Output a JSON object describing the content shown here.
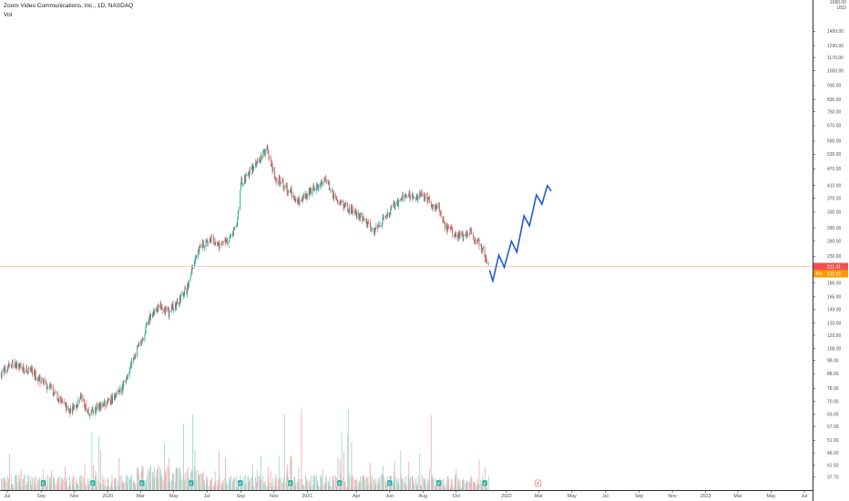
{
  "header": {
    "title": "Zoom Video Communications, Inc., 1D, NASDAQ",
    "volume_label": "Vol"
  },
  "price_axis": {
    "currency_top": "1690.00",
    "currency_unit": "USD",
    "ticks": [
      "1450.00",
      "1290.00",
      "1170.00",
      "1050.00",
      "930.00",
      "830.00",
      "750.00",
      "670.00",
      "590.00",
      "530.00",
      "470.00",
      "410.00",
      "370.00",
      "330.00",
      "290.00",
      "260.00",
      "230.00",
      "185.00",
      "165.00",
      "149.00",
      "133.00",
      "120.50",
      "108.00",
      "98.00",
      "88.00",
      "78.00",
      "70.00",
      "63.00",
      "57.00",
      "51.00",
      "46.00",
      "41.50",
      "37.70"
    ]
  },
  "time_axis": {
    "labels": [
      "Jul",
      "Sep",
      "Nov",
      "2020",
      "Mar",
      "May",
      "Jul",
      "Sep",
      "Nov",
      "2021",
      "Apr",
      "Jun",
      "Aug",
      "Oct",
      "2022",
      "Mar",
      "May",
      "Jul",
      "Sep",
      "Nov",
      "2023",
      "Mar",
      "May",
      "Jul"
    ]
  },
  "price_tags": {
    "last_price": "211.41",
    "pre_label": "Pre",
    "pre_price": "210.91"
  },
  "earnings_marker": "E",
  "colors": {
    "up": "#26a69a",
    "down": "#ef5350",
    "up_vol": "#9fd6cf",
    "down_vol": "#f5b0ad",
    "projection": "#1e5ccf",
    "last_price": "#ef5350",
    "pre_market": "#ff9800",
    "price_line": "#fbc8a8"
  },
  "chart_data": {
    "type": "candlestick",
    "title": "Zoom Video Communications, Inc., 1D, NASDAQ",
    "y_scale": "log",
    "ylim": [
      36,
      1700
    ],
    "grid": false,
    "volume_pane": true,
    "price_path": [
      [
        "2019-06-20",
        88
      ],
      [
        "2019-07-05",
        96
      ],
      [
        "2019-07-25",
        92
      ],
      [
        "2019-08-15",
        90
      ],
      [
        "2019-08-30",
        83
      ],
      [
        "2019-09-20",
        78
      ],
      [
        "2019-10-10",
        69
      ],
      [
        "2019-10-25",
        65
      ],
      [
        "2019-11-15",
        72
      ],
      [
        "2019-11-28",
        63
      ],
      [
        "2019-12-15",
        67
      ],
      [
        "2020-01-05",
        70
      ],
      [
        "2020-01-25",
        76
      ],
      [
        "2020-02-15",
        97
      ],
      [
        "2020-03-05",
        118
      ],
      [
        "2020-03-20",
        142
      ],
      [
        "2020-04-05",
        155
      ],
      [
        "2020-04-20",
        145
      ],
      [
        "2020-05-05",
        155
      ],
      [
        "2020-05-25",
        175
      ],
      [
        "2020-06-10",
        230
      ],
      [
        "2020-06-25",
        255
      ],
      [
        "2020-07-10",
        262
      ],
      [
        "2020-07-25",
        250
      ],
      [
        "2020-08-10",
        262
      ],
      [
        "2020-08-25",
        300
      ],
      [
        "2020-09-01",
        420
      ],
      [
        "2020-09-15",
        450
      ],
      [
        "2020-10-05",
        500
      ],
      [
        "2020-10-19",
        560
      ],
      [
        "2020-11-02",
        440
      ],
      [
        "2020-11-15",
        420
      ],
      [
        "2020-11-30",
        390
      ],
      [
        "2020-12-15",
        360
      ],
      [
        "2021-01-05",
        390
      ],
      [
        "2021-01-25",
        420
      ],
      [
        "2021-02-05",
        430
      ],
      [
        "2021-02-20",
        370
      ],
      [
        "2021-03-15",
        340
      ],
      [
        "2021-04-10",
        320
      ],
      [
        "2021-05-01",
        280
      ],
      [
        "2021-05-20",
        310
      ],
      [
        "2021-06-10",
        350
      ],
      [
        "2021-06-28",
        380
      ],
      [
        "2021-07-15",
        375
      ],
      [
        "2021-07-30",
        380
      ],
      [
        "2021-08-15",
        355
      ],
      [
        "2021-08-30",
        345
      ],
      [
        "2021-09-10",
        295
      ],
      [
        "2021-09-25",
        280
      ],
      [
        "2021-10-10",
        270
      ],
      [
        "2021-10-25",
        280
      ],
      [
        "2021-11-15",
        250
      ],
      [
        "2021-11-30",
        211
      ]
    ],
    "projection_path": [
      [
        "2021-12-01",
        205
      ],
      [
        "2021-12-07",
        188
      ],
      [
        "2021-12-18",
        232
      ],
      [
        "2021-12-28",
        210
      ],
      [
        "2022-01-10",
        260
      ],
      [
        "2022-01-20",
        238
      ],
      [
        "2022-02-02",
        320
      ],
      [
        "2022-02-12",
        295
      ],
      [
        "2022-02-25",
        380
      ],
      [
        "2022-03-07",
        352
      ],
      [
        "2022-03-17",
        410
      ],
      [
        "2022-03-24",
        392
      ]
    ],
    "earnings_dates": [
      "2019-09-05",
      "2019-12-05",
      "2020-03-04",
      "2020-06-02",
      "2020-08-31",
      "2020-12-01",
      "2021-03-01",
      "2021-06-01",
      "2021-08-30",
      "2021-11-22",
      "2022-02-28"
    ]
  }
}
